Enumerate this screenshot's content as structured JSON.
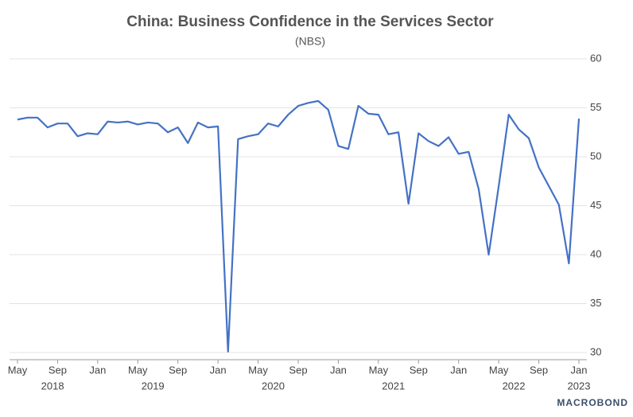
{
  "chart_data": {
    "type": "line",
    "title": "China: Business Confidence in the Services Sector",
    "subtitle": "(NBS)",
    "source": "MACROBOND",
    "x": [
      "2018-05",
      "2018-06",
      "2018-07",
      "2018-08",
      "2018-09",
      "2018-10",
      "2018-11",
      "2018-12",
      "2019-01",
      "2019-02",
      "2019-03",
      "2019-04",
      "2019-05",
      "2019-06",
      "2019-07",
      "2019-08",
      "2019-09",
      "2019-10",
      "2019-11",
      "2019-12",
      "2020-01",
      "2020-02",
      "2020-03",
      "2020-04",
      "2020-05",
      "2020-06",
      "2020-07",
      "2020-08",
      "2020-09",
      "2020-10",
      "2020-11",
      "2020-12",
      "2021-01",
      "2021-02",
      "2021-03",
      "2021-04",
      "2021-05",
      "2021-06",
      "2021-07",
      "2021-08",
      "2021-09",
      "2021-10",
      "2021-11",
      "2021-12",
      "2022-01",
      "2022-02",
      "2022-03",
      "2022-04",
      "2022-05",
      "2022-06",
      "2022-07",
      "2022-08",
      "2022-09",
      "2022-10",
      "2022-11",
      "2022-12",
      "2023-01"
    ],
    "series": [
      {
        "name": "Business Confidence",
        "color": "#4472c4",
        "values": [
          53.8,
          54.0,
          54.0,
          53.0,
          53.4,
          53.4,
          52.1,
          52.4,
          52.3,
          53.6,
          53.5,
          53.6,
          53.3,
          53.5,
          53.4,
          52.5,
          53.0,
          51.4,
          53.5,
          53.0,
          53.1,
          30.1,
          51.8,
          52.1,
          52.3,
          53.4,
          53.1,
          54.3,
          55.2,
          55.5,
          55.7,
          54.8,
          51.1,
          50.8,
          55.2,
          54.4,
          54.3,
          52.3,
          52.5,
          45.2,
          52.4,
          51.6,
          51.1,
          52.0,
          50.3,
          50.5,
          46.7,
          40.0,
          47.0,
          54.3,
          52.8,
          51.9,
          48.9,
          47.0,
          45.1,
          39.1,
          53.9
        ]
      }
    ],
    "xticks": [
      {
        "value": "2018-05",
        "label": "May"
      },
      {
        "value": "2018-09",
        "label": "Sep"
      },
      {
        "value": "2019-01",
        "label": "Jan"
      },
      {
        "value": "2019-05",
        "label": "May"
      },
      {
        "value": "2019-09",
        "label": "Sep"
      },
      {
        "value": "2020-01",
        "label": "Jan"
      },
      {
        "value": "2020-05",
        "label": "May"
      },
      {
        "value": "2020-09",
        "label": "Sep"
      },
      {
        "value": "2021-01",
        "label": "Jan"
      },
      {
        "value": "2021-05",
        "label": "May"
      },
      {
        "value": "2021-09",
        "label": "Sep"
      },
      {
        "value": "2022-01",
        "label": "Jan"
      },
      {
        "value": "2022-05",
        "label": "May"
      },
      {
        "value": "2022-09",
        "label": "Sep"
      },
      {
        "value": "2023-01",
        "label": "Jan"
      }
    ],
    "year_labels": [
      "2018",
      "2019",
      "2020",
      "2021",
      "2022",
      "2023"
    ],
    "ylim": [
      30,
      60
    ],
    "yticks": [
      30,
      35,
      40,
      45,
      50,
      55,
      60
    ],
    "grid": true
  }
}
